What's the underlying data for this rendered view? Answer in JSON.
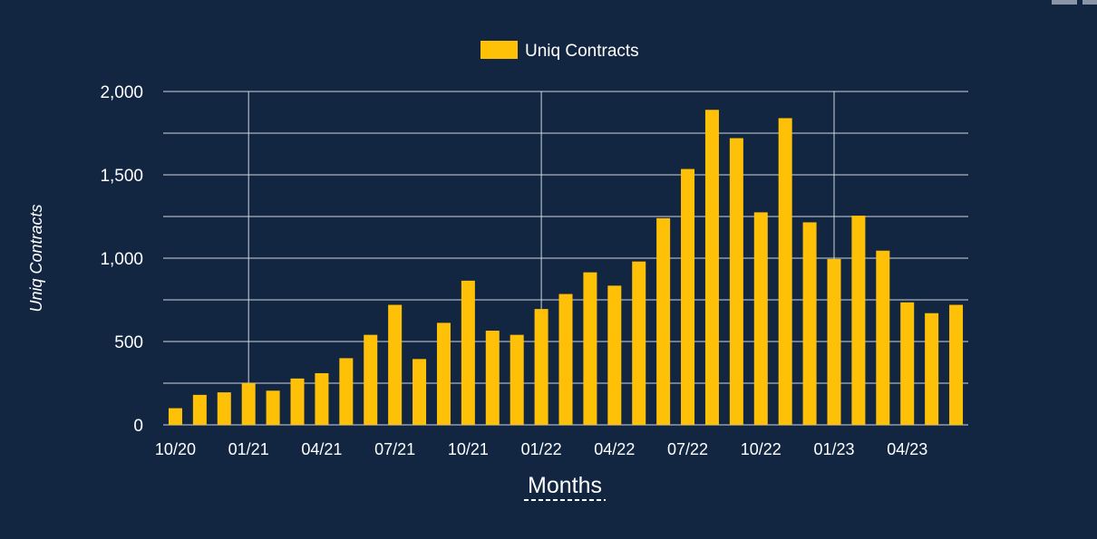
{
  "chart_data": {
    "type": "bar",
    "legend": {
      "label": "Uniq Contracts",
      "position": "top"
    },
    "ylabel": "Uniq Contracts",
    "xlabel": "Months",
    "ylim": [
      0,
      2000
    ],
    "yticks": [
      0,
      500,
      1000,
      1500,
      2000
    ],
    "ytick_labels": [
      "0",
      "500",
      "1,000",
      "1,500",
      "2,000"
    ],
    "grid": true,
    "colors": {
      "bar": "#FFC107",
      "background": "#132641",
      "grid": "#CFD6DF",
      "text": "#FFFFFF"
    },
    "categories": [
      "10/20",
      "11/20",
      "12/20",
      "01/21",
      "02/21",
      "03/21",
      "04/21",
      "05/21",
      "06/21",
      "07/21",
      "08/21",
      "09/21",
      "10/21",
      "11/21",
      "12/21",
      "01/22",
      "02/22",
      "03/22",
      "04/22",
      "05/22",
      "06/22",
      "07/22",
      "08/22",
      "09/22",
      "10/22",
      "11/22",
      "12/22",
      "01/23",
      "02/23",
      "03/23",
      "04/23",
      "05/23",
      "06/23"
    ],
    "xtick_labels": [
      {
        "index": 0,
        "label": "10/20"
      },
      {
        "index": 3,
        "label": "01/21"
      },
      {
        "index": 6,
        "label": "04/21"
      },
      {
        "index": 9,
        "label": "07/21"
      },
      {
        "index": 12,
        "label": "10/21"
      },
      {
        "index": 15,
        "label": "01/22"
      },
      {
        "index": 18,
        "label": "04/22"
      },
      {
        "index": 21,
        "label": "07/22"
      },
      {
        "index": 24,
        "label": "10/22"
      },
      {
        "index": 27,
        "label": "01/23"
      },
      {
        "index": 30,
        "label": "04/23"
      }
    ],
    "series": [
      {
        "name": "Uniq Contracts",
        "values": [
          100,
          180,
          195,
          250,
          205,
          278,
          310,
          400,
          540,
          720,
          395,
          612,
          865,
          565,
          540,
          695,
          785,
          915,
          835,
          980,
          1240,
          1535,
          1890,
          1720,
          1275,
          1840,
          1215,
          995,
          1255,
          1045,
          735,
          670,
          720
        ]
      }
    ]
  }
}
